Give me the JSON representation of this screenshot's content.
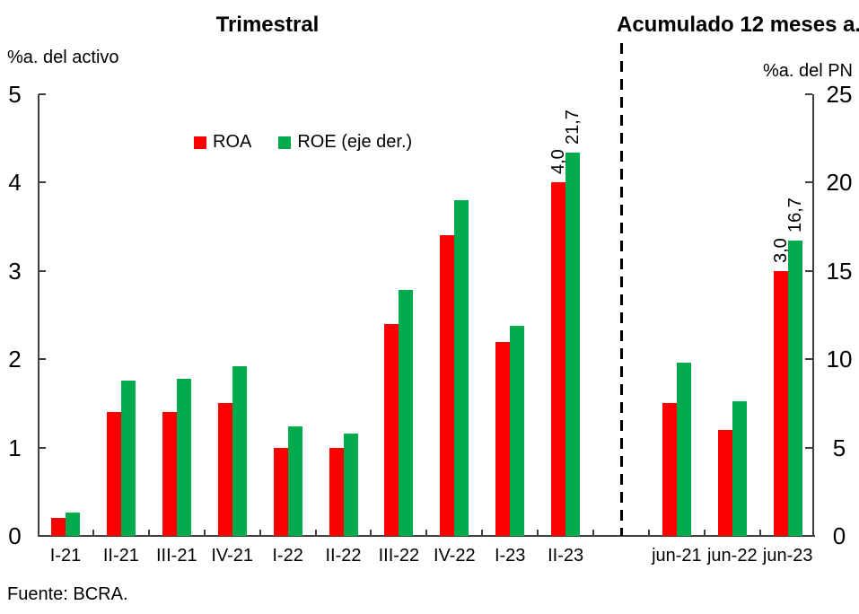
{
  "chart_data": {
    "type": "bar",
    "panels": [
      {
        "id": "quarterly",
        "title": "Trimestral",
        "categories": [
          "I-21",
          "II-21",
          "III-21",
          "IV-21",
          "I-22",
          "II-22",
          "III-22",
          "IV-22",
          "I-23",
          "II-23"
        ],
        "series": [
          {
            "name": "ROA",
            "axis": "left",
            "color": "#fc0000",
            "values": [
              0.2,
              1.4,
              1.4,
              1.5,
              1.0,
              1.0,
              2.4,
              3.4,
              2.2,
              4.0
            ]
          },
          {
            "name": "ROE (eje der.)",
            "axis": "right",
            "color": "#00ab4e",
            "values": [
              1.3,
              8.8,
              8.9,
              9.6,
              6.2,
              5.8,
              13.9,
              19.0,
              11.9,
              21.7
            ]
          }
        ],
        "annotations": [
          {
            "category": "II-23",
            "series": "ROA",
            "text": "4,0"
          },
          {
            "category": "II-23",
            "series": "ROE (eje der.)",
            "text": "21,7"
          }
        ]
      },
      {
        "id": "accumulated",
        "title": "Acumulado 12 meses a...",
        "categories": [
          "jun-21",
          "jun-22",
          "jun-23"
        ],
        "series": [
          {
            "name": "ROA",
            "axis": "left",
            "color": "#fc0000",
            "values": [
              1.5,
              1.2,
              3.0
            ]
          },
          {
            "name": "ROE (eje der.)",
            "axis": "right",
            "color": "#00ab4e",
            "values": [
              9.8,
              7.6,
              16.7
            ]
          }
        ],
        "annotations": [
          {
            "category": "jun-23",
            "series": "ROA",
            "text": "3,0"
          },
          {
            "category": "jun-23",
            "series": "ROE (eje der.)",
            "text": "16,7"
          }
        ]
      }
    ],
    "left_axis": {
      "label": "%a. del activo",
      "min": 0,
      "max": 5,
      "ticks": [
        0,
        1,
        2,
        3,
        4,
        5
      ]
    },
    "right_axis": {
      "label": "%a. del PN",
      "min": 0,
      "max": 25,
      "ticks": [
        0,
        5,
        10,
        15,
        20,
        25
      ]
    },
    "legend": [
      {
        "label": "ROA",
        "color": "#fc0000"
      },
      {
        "label": "ROE (eje der.)",
        "color": "#00ab4e"
      }
    ],
    "grid": false,
    "legend_position": "top-left-of-plot",
    "source": "Fuente: BCRA."
  }
}
